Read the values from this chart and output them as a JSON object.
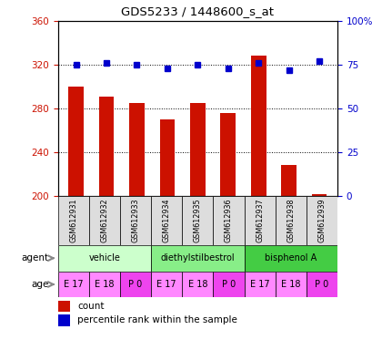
{
  "title": "GDS5233 / 1448600_s_at",
  "samples": [
    "GSM612931",
    "GSM612932",
    "GSM612933",
    "GSM612934",
    "GSM612935",
    "GSM612936",
    "GSM612937",
    "GSM612938",
    "GSM612939"
  ],
  "counts": [
    300,
    291,
    285,
    270,
    285,
    276,
    328,
    228,
    202
  ],
  "percentiles": [
    75,
    76,
    75,
    73,
    75,
    73,
    76,
    72,
    77
  ],
  "ylim_left": [
    200,
    360
  ],
  "ylim_right": [
    0,
    100
  ],
  "yticks_left": [
    200,
    240,
    280,
    320,
    360
  ],
  "yticks_right": [
    0,
    25,
    50,
    75,
    100
  ],
  "bar_color": "#cc1100",
  "dot_color": "#0000cc",
  "agent_groups": [
    {
      "label": "vehicle",
      "start": 0,
      "end": 3,
      "color": "#ccffcc"
    },
    {
      "label": "diethylstilbestrol",
      "start": 3,
      "end": 6,
      "color": "#88ee88"
    },
    {
      "label": "bisphenol A",
      "start": 6,
      "end": 9,
      "color": "#44cc44"
    }
  ],
  "age_labels": [
    "E 17",
    "E 18",
    "P 0",
    "E 17",
    "E 18",
    "P 0",
    "E 17",
    "E 18",
    "P 0"
  ],
  "age_color_light": "#ff88ff",
  "age_color_dark": "#ee44ee",
  "bar_width": 0.5,
  "tick_label_color_left": "#cc1100",
  "tick_label_color_right": "#0000cc"
}
